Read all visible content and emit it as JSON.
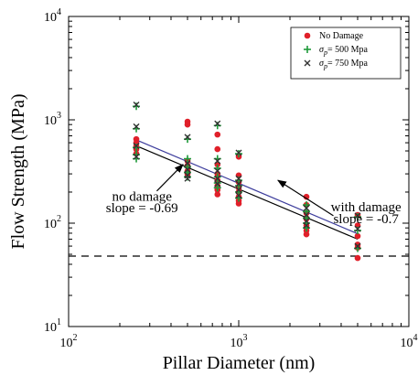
{
  "chart_data": {
    "type": "scatter",
    "xlabel": "Pillar Diameter (nm)",
    "ylabel": "Flow Strength (MPa)",
    "x_scale": "log",
    "y_scale": "log",
    "xlim": [
      100,
      10000
    ],
    "ylim": [
      10,
      10000
    ],
    "x_ticks": [
      {
        "value": 100,
        "base": "10",
        "exp": "2"
      },
      {
        "value": 1000,
        "base": "10",
        "exp": "3"
      },
      {
        "value": 10000,
        "base": "10",
        "exp": "4"
      }
    ],
    "y_ticks": [
      {
        "value": 10,
        "base": "10",
        "exp": "1"
      },
      {
        "value": 100,
        "base": "10",
        "exp": "2"
      },
      {
        "value": 1000,
        "base": "10",
        "exp": "3"
      },
      {
        "value": 10000,
        "base": "10",
        "exp": "4"
      }
    ],
    "legend_position": "top-right",
    "series": [
      {
        "name": "No Damage",
        "label_main": "No Damage",
        "label_sub": "",
        "label_tail": "",
        "marker": "circle",
        "color": "#e0202a",
        "points": [
          [
            250,
            600
          ],
          [
            250,
            560
          ],
          [
            250,
            520
          ],
          [
            250,
            470
          ],
          [
            250,
            650
          ],
          [
            500,
            960
          ],
          [
            500,
            900
          ],
          [
            500,
            400
          ],
          [
            500,
            360
          ],
          [
            500,
            320
          ],
          [
            500,
            300
          ],
          [
            750,
            720
          ],
          [
            750,
            520
          ],
          [
            750,
            370
          ],
          [
            750,
            300
          ],
          [
            750,
            260
          ],
          [
            750,
            230
          ],
          [
            750,
            210
          ],
          [
            750,
            190
          ],
          [
            1000,
            440
          ],
          [
            1000,
            290
          ],
          [
            1000,
            250
          ],
          [
            1000,
            220
          ],
          [
            1000,
            200
          ],
          [
            1000,
            180
          ],
          [
            1000,
            165
          ],
          [
            1000,
            155
          ],
          [
            2500,
            180
          ],
          [
            2500,
            150
          ],
          [
            2500,
            125
          ],
          [
            2500,
            110
          ],
          [
            2500,
            95
          ],
          [
            2500,
            85
          ],
          [
            2500,
            78
          ],
          [
            5000,
            120
          ],
          [
            5000,
            95
          ],
          [
            5000,
            75
          ],
          [
            5000,
            62
          ],
          [
            5000,
            58
          ],
          [
            5000,
            46
          ]
        ]
      },
      {
        "name": "σp = 500 Mpa",
        "label_main": "σ",
        "label_sub": "p",
        "label_tail": "= 500 Mpa",
        "marker": "plus",
        "color": "#1f9a3a",
        "points": [
          [
            250,
            1350
          ],
          [
            250,
            820
          ],
          [
            250,
            540
          ],
          [
            250,
            460
          ],
          [
            250,
            420
          ],
          [
            500,
            650
          ],
          [
            500,
            420
          ],
          [
            500,
            350
          ],
          [
            500,
            310
          ],
          [
            500,
            280
          ],
          [
            750,
            880
          ],
          [
            750,
            420
          ],
          [
            750,
            340
          ],
          [
            750,
            280
          ],
          [
            750,
            245
          ],
          [
            750,
            220
          ],
          [
            1000,
            470
          ],
          [
            1000,
            260
          ],
          [
            1000,
            230
          ],
          [
            1000,
            200
          ],
          [
            1000,
            175
          ],
          [
            2500,
            150
          ],
          [
            2500,
            130
          ],
          [
            2500,
            112
          ],
          [
            2500,
            100
          ],
          [
            2500,
            90
          ],
          [
            5000,
            115
          ],
          [
            5000,
            85
          ],
          [
            5000,
            57
          ]
        ]
      },
      {
        "name": "σp = 750 Mpa",
        "label_main": "σ",
        "label_sub": "p",
        "label_tail": "= 750 Mpa",
        "marker": "x",
        "color": "#333333",
        "points": [
          [
            250,
            1400
          ],
          [
            250,
            860
          ],
          [
            250,
            560
          ],
          [
            250,
            440
          ],
          [
            500,
            680
          ],
          [
            500,
            380
          ],
          [
            500,
            330
          ],
          [
            500,
            290
          ],
          [
            500,
            270
          ],
          [
            750,
            920
          ],
          [
            750,
            400
          ],
          [
            750,
            320
          ],
          [
            750,
            270
          ],
          [
            750,
            240
          ],
          [
            1000,
            480
          ],
          [
            1000,
            270
          ],
          [
            1000,
            240
          ],
          [
            1000,
            210
          ],
          [
            1000,
            185
          ],
          [
            2500,
            140
          ],
          [
            2500,
            120
          ],
          [
            2500,
            105
          ],
          [
            2500,
            95
          ],
          [
            5000,
            118
          ],
          [
            5000,
            88
          ],
          [
            5000,
            60
          ]
        ]
      }
    ],
    "fit_lines": [
      {
        "label": "with damage",
        "slope": -0.7,
        "x": [
          250,
          5000
        ],
        "y": [
          640,
          79
        ],
        "color": "#3c3c9c"
      },
      {
        "label": "no damage",
        "slope": -0.69,
        "x": [
          250,
          5000
        ],
        "y": [
          560,
          70
        ],
        "color": "#000000"
      }
    ],
    "reference_line": {
      "y": 48,
      "style": "dashed",
      "color": "#000000"
    },
    "annotations": [
      {
        "id": "with-damage",
        "lines": [
          "with damage",
          "slope = -0.7"
        ],
        "data_x": 5600,
        "data_y": [
          130,
          100
        ]
      },
      {
        "id": "no-damage",
        "lines": [
          "no damage",
          "slope = -0.69"
        ],
        "data_x": 270,
        "data_y": [
          165,
          128
        ]
      }
    ]
  }
}
